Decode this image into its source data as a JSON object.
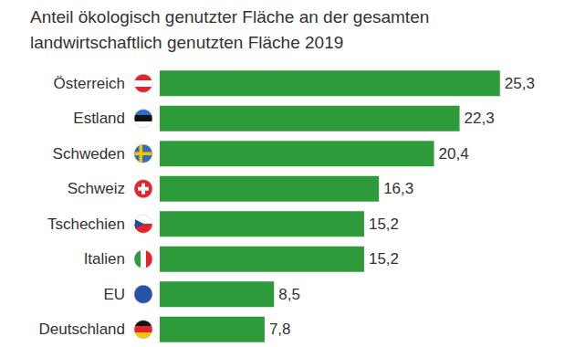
{
  "chart_data": {
    "type": "bar",
    "title": "Anteil ökologisch genutzter Fläche an der gesamten landwirtschaftlich genutzten Fläche 2019",
    "categories": [
      "Österreich",
      "Estland",
      "Schweden",
      "Schweiz",
      "Tschechien",
      "Italien",
      "EU",
      "Deutschland"
    ],
    "values": [
      25.3,
      22.3,
      20.4,
      16.3,
      15.2,
      15.2,
      8.5,
      7.8
    ],
    "value_labels": [
      "25,3",
      "22,3",
      "20,4",
      "16,3",
      "15,2",
      "15,2",
      "8,5",
      "7,8"
    ],
    "color": "#2d9b3a",
    "xlim": [
      0,
      30
    ],
    "orientation": "horizontal",
    "data_labels": true,
    "tick_labels": "y",
    "grid": false
  }
}
